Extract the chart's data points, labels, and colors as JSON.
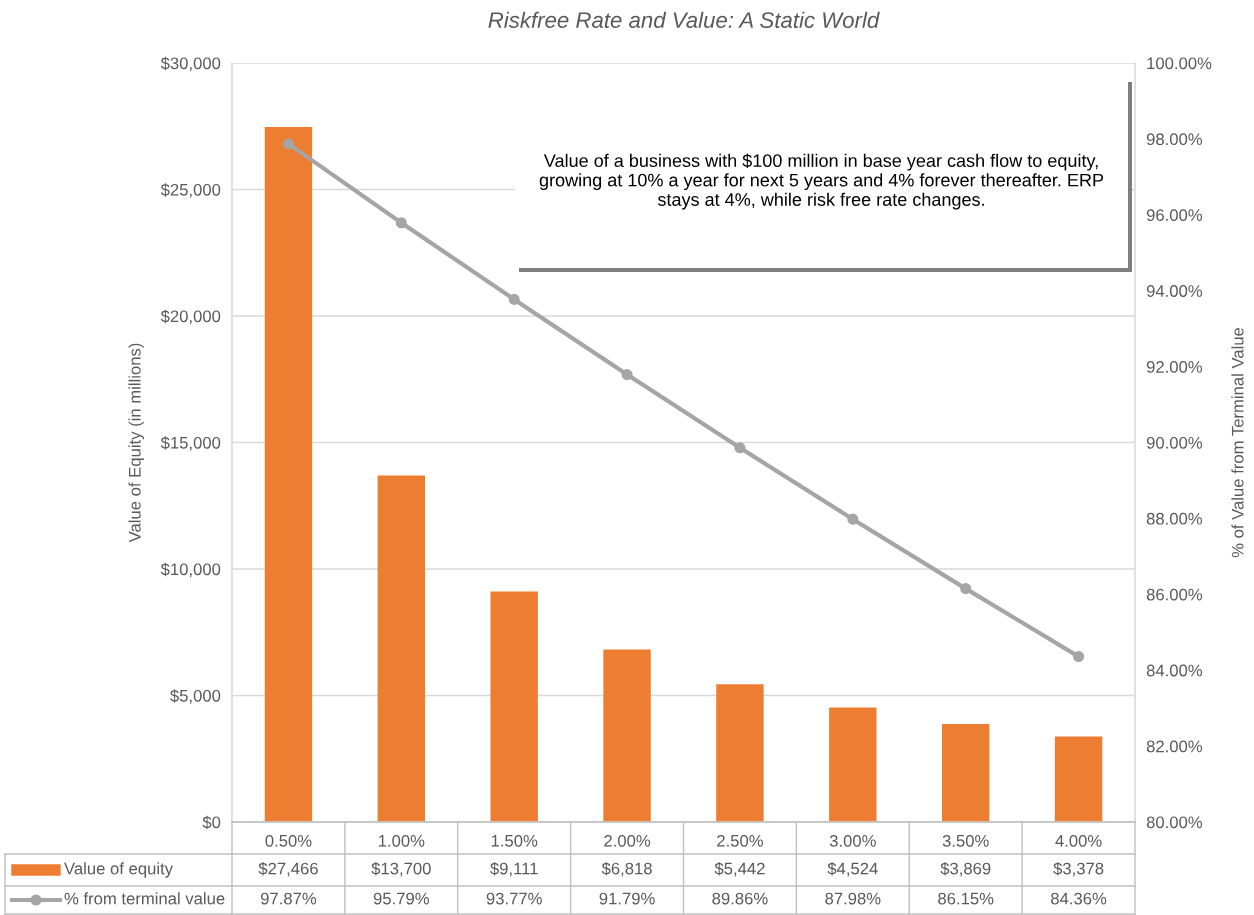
{
  "chart_data": {
    "type": "bar",
    "title": "Riskfree Rate and Value: A Static World",
    "categories": [
      "0.50%",
      "1.00%",
      "1.50%",
      "2.00%",
      "2.50%",
      "3.00%",
      "3.50%",
      "4.00%"
    ],
    "series": [
      {
        "name": "Value of equity",
        "color": "#ed7d31",
        "values": [
          27466,
          13700,
          9111,
          6818,
          5442,
          4524,
          3869,
          3378
        ],
        "value_labels": [
          "$27,466",
          "$13,700",
          "$9,111",
          "$6,818",
          "$5,442",
          "$4,524",
          "$3,869",
          "$3,378"
        ]
      },
      {
        "name": "% from terminal value",
        "type": "line",
        "axis": "y2",
        "color": "#a5a5a5",
        "marker": "circle",
        "values": [
          97.87,
          95.79,
          93.77,
          91.79,
          89.86,
          87.98,
          86.15,
          84.36
        ],
        "value_labels": [
          "97.87%",
          "95.79%",
          "93.77%",
          "91.79%",
          "89.86%",
          "87.98%",
          "86.15%",
          "84.36%"
        ]
      }
    ],
    "ylabel": "Value of Equity (in millions)",
    "y2label": "% of Value from Terminal Value",
    "ylim": [
      0,
      30000
    ],
    "yticks": [
      {
        "value": 0,
        "label": "$0"
      },
      {
        "value": 5000,
        "label": "$5,000"
      },
      {
        "value": 10000,
        "label": "$10,000"
      },
      {
        "value": 15000,
        "label": "$15,000"
      },
      {
        "value": 20000,
        "label": "$20,000"
      },
      {
        "value": 25000,
        "label": "$25,000"
      },
      {
        "value": 30000,
        "label": "$30,000"
      }
    ],
    "y2lim": [
      80,
      100
    ],
    "y2ticks": [
      {
        "value": 80,
        "label": "80.00%"
      },
      {
        "value": 82,
        "label": "82.00%"
      },
      {
        "value": 84,
        "label": "84.00%"
      },
      {
        "value": 86,
        "label": "86.00%"
      },
      {
        "value": 88,
        "label": "88.00%"
      },
      {
        "value": 90,
        "label": "90.00%"
      },
      {
        "value": 92,
        "label": "92.00%"
      },
      {
        "value": 94,
        "label": "94.00%"
      },
      {
        "value": 96,
        "label": "96.00%"
      },
      {
        "value": 98,
        "label": "98.00%"
      },
      {
        "value": 100,
        "label": "100.00%"
      }
    ],
    "grid": "y",
    "legend": "bottom",
    "annotations": [
      "Value of a business with $100 million in base year cash flow to equity, growing at 10% a year for next 5 years and 4% forever thereafter. ERP stays at 4%, while risk free rate changes."
    ]
  }
}
